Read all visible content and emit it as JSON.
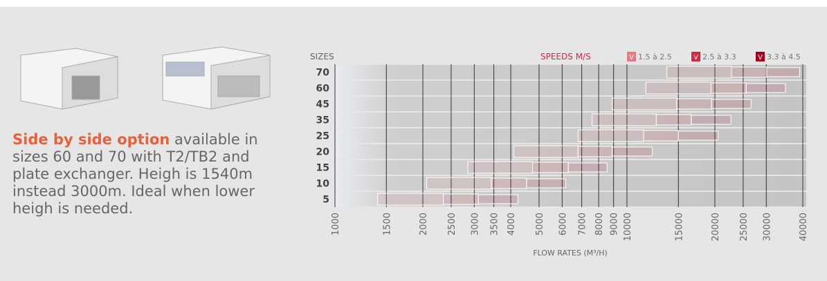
{
  "description": {
    "highlight": "Side by side option",
    "text": "available in sizes 60 and 70 with T2/TB2 and plate exchanger. Heigh is 1540m instead 3000m. Ideal when lower heigh is needed."
  },
  "chart_data": {
    "type": "range-bar",
    "y_label": "SIZES",
    "legend_title": "SPEEDS M/S",
    "legend_marker_text": "V",
    "x_label": "FLOW RATES (M³/H)",
    "categories": [
      "70",
      "60",
      "45",
      "35",
      "25",
      "20",
      "15",
      "10",
      "5"
    ],
    "log_x": true,
    "xlim": [
      1000,
      40000
    ],
    "xticks": [
      1000,
      1500,
      2000,
      2500,
      3000,
      3500,
      4000,
      5000,
      6000,
      7000,
      8000,
      9000,
      10000,
      15000,
      20000,
      25000,
      30000,
      40000
    ],
    "series": [
      {
        "name": "1.5 à 2.5",
        "color": "#e07a86",
        "values": [
          [
            13700,
            22800
          ],
          [
            11600,
            19400
          ],
          [
            8900,
            14800
          ],
          [
            7600,
            12600
          ],
          [
            6800,
            11400
          ],
          [
            4100,
            6800
          ],
          [
            2850,
            4750
          ],
          [
            2060,
            3430
          ],
          [
            1400,
            2350
          ]
        ]
      },
      {
        "name": "2.5 à 3.3",
        "color": "#d7263d",
        "values": [
          [
            22800,
            30100
          ],
          [
            19400,
            25600
          ],
          [
            14800,
            19500
          ],
          [
            12600,
            16600
          ],
          [
            11400,
            15000
          ],
          [
            6800,
            8900
          ],
          [
            4750,
            6300
          ],
          [
            3430,
            4530
          ],
          [
            2350,
            3100
          ]
        ]
      },
      {
        "name": "3.3 à 4.5",
        "color": "#a3001b",
        "values": [
          [
            30100,
            39000
          ],
          [
            25600,
            34900
          ],
          [
            19500,
            26600
          ],
          [
            16600,
            22700
          ],
          [
            15000,
            20500
          ],
          [
            8900,
            12200
          ],
          [
            6300,
            8550
          ],
          [
            4530,
            6170
          ],
          [
            3100,
            4230
          ]
        ]
      }
    ]
  }
}
